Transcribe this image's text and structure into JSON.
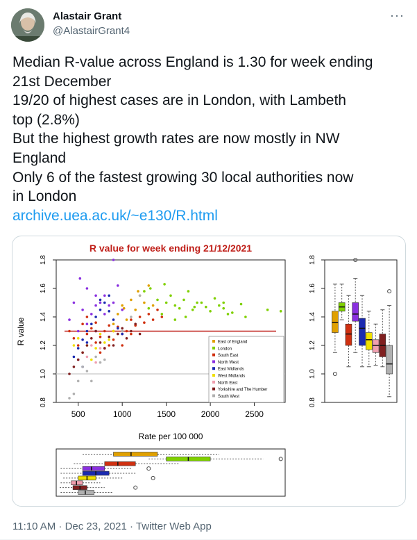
{
  "tweet": {
    "author_name": "Alastair Grant",
    "author_handle": "@AlastairGrant4",
    "more_label": "···",
    "lines": [
      "Median R-value across England is 1.30 for week ending",
      "21st December",
      "19/20 of highest cases are in London, with Lambeth",
      "top (2.8%)",
      "But the highest growth rates are now mostly in NW",
      "England",
      "Only 6 of the fastest growing 30 local authorities now",
      "in London"
    ],
    "link_text": "archive.uea.ac.uk/~e130/R.html",
    "meta": "11:10 AM · Dec 23, 2021 · Twitter Web App"
  },
  "chart_data": [
    {
      "type": "scatter",
      "title": "R value for week ending 21/12/2021",
      "xlabel": "Rate per 100 000",
      "ylabel": "R value",
      "xlim": [
        250,
        2850
      ],
      "ylim": [
        0.8,
        1.8
      ],
      "x_ticks": [
        "500",
        "1000",
        "1500",
        "2000",
        "2500"
      ],
      "y_ticks": [
        "0.8",
        "1.0",
        "1.2",
        "1.4",
        "1.6",
        "1.8"
      ],
      "median_line": 1.3,
      "reference_line": 1.0,
      "legend_position": "bottom-right",
      "series": [
        {
          "name": "East of England",
          "color": "#e0a000",
          "points": [
            [
              1100,
              1.52
            ],
            [
              1000,
              1.48
            ],
            [
              1150,
              1.45
            ],
            [
              950,
              1.42
            ],
            [
              1200,
              1.55
            ],
            [
              1300,
              1.62
            ],
            [
              1050,
              1.38
            ],
            [
              900,
              1.35
            ],
            [
              1250,
              1.5
            ],
            [
              1350,
              1.48
            ],
            [
              1180,
              1.58
            ],
            [
              1020,
              1.46
            ]
          ]
        },
        {
          "name": "London",
          "color": "#7fd000",
          "points": [
            [
              1500,
              1.5
            ],
            [
              1600,
              1.48
            ],
            [
              1700,
              1.52
            ],
            [
              1800,
              1.45
            ],
            [
              1900,
              1.5
            ],
            [
              2000,
              1.44
            ],
            [
              2100,
              1.48
            ],
            [
              2200,
              1.42
            ],
            [
              2400,
              1.4
            ],
            [
              2650,
              1.45
            ],
            [
              2800,
              1.44
            ],
            [
              1550,
              1.55
            ],
            [
              1650,
              1.46
            ],
            [
              1750,
              1.58
            ],
            [
              1850,
              1.5
            ],
            [
              1950,
              1.47
            ],
            [
              2050,
              1.53
            ],
            [
              2150,
              1.46
            ],
            [
              2250,
              1.43
            ],
            [
              2350,
              1.49
            ],
            [
              1450,
              1.42
            ],
            [
              1600,
              1.38
            ],
            [
              1720,
              1.4
            ],
            [
              1820,
              1.47
            ],
            [
              1400,
              1.52
            ],
            [
              1300,
              1.46
            ],
            [
              1250,
              1.58
            ],
            [
              1320,
              1.6
            ],
            [
              1480,
              1.63
            ],
            [
              2150,
              1.5
            ]
          ]
        },
        {
          "name": "South East",
          "color": "#d03010",
          "points": [
            [
              400,
              1.3
            ],
            [
              450,
              1.25
            ],
            [
              500,
              1.2
            ],
            [
              550,
              1.35
            ],
            [
              600,
              1.28
            ],
            [
              650,
              1.32
            ],
            [
              700,
              1.22
            ],
            [
              750,
              1.26
            ],
            [
              800,
              1.3
            ],
            [
              850,
              1.2
            ],
            [
              900,
              1.24
            ],
            [
              950,
              1.33
            ],
            [
              1000,
              1.28
            ],
            [
              1050,
              1.3
            ],
            [
              1100,
              1.38
            ],
            [
              1150,
              1.34
            ],
            [
              1200,
              1.4
            ],
            [
              1250,
              1.36
            ],
            [
              1300,
              1.42
            ],
            [
              1350,
              1.38
            ],
            [
              1400,
              1.45
            ],
            [
              1450,
              1.4
            ],
            [
              700,
              1.36
            ],
            [
              800,
              1.18
            ],
            [
              900,
              1.3
            ],
            [
              1000,
              1.2
            ],
            [
              1100,
              1.28
            ],
            [
              600,
              1.4
            ],
            [
              750,
              1.15
            ],
            [
              850,
              1.34
            ]
          ]
        },
        {
          "name": "North West",
          "color": "#8a30e0",
          "points": [
            [
              520,
              1.67
            ],
            [
              600,
              1.6
            ],
            [
              700,
              1.55
            ],
            [
              800,
              1.55
            ],
            [
              900,
              1.8
            ],
            [
              850,
              1.48
            ],
            [
              750,
              1.5
            ],
            [
              650,
              1.42
            ],
            [
              550,
              1.45
            ],
            [
              450,
              1.5
            ],
            [
              400,
              1.38
            ],
            [
              1000,
              1.45
            ],
            [
              950,
              1.62
            ],
            [
              700,
              1.48
            ],
            [
              800,
              1.42
            ],
            [
              900,
              1.5
            ],
            [
              600,
              1.35
            ],
            [
              500,
              1.3
            ]
          ]
        },
        {
          "name": "East Midlands",
          "color": "#1a2ab0",
          "points": [
            [
              450,
              1.12
            ],
            [
              500,
              1.18
            ],
            [
              550,
              1.24
            ],
            [
              600,
              1.3
            ],
            [
              650,
              1.35
            ],
            [
              700,
              1.4
            ],
            [
              750,
              1.45
            ],
            [
              800,
              1.5
            ],
            [
              850,
              1.44
            ],
            [
              900,
              1.38
            ],
            [
              950,
              1.32
            ],
            [
              1000,
              1.28
            ],
            [
              750,
              1.52
            ],
            [
              850,
              1.55
            ],
            [
              700,
              1.3
            ],
            [
              600,
              1.22
            ],
            [
              500,
              1.1
            ],
            [
              550,
              1.05
            ]
          ]
        },
        {
          "name": "West Midlands",
          "color": "#f0e000",
          "points": [
            [
              500,
              1.25
            ],
            [
              600,
              1.2
            ],
            [
              700,
              1.18
            ],
            [
              800,
              1.22
            ],
            [
              900,
              1.3
            ],
            [
              650,
              1.1
            ],
            [
              550,
              1.15
            ],
            [
              750,
              1.28
            ],
            [
              850,
              1.24
            ],
            [
              450,
              1.2
            ]
          ]
        },
        {
          "name": "North East",
          "color": "#f0a0b0",
          "points": [
            [
              500,
              1.1
            ],
            [
              550,
              1.15
            ],
            [
              600,
              1.12
            ],
            [
              650,
              1.2
            ],
            [
              700,
              1.08
            ],
            [
              750,
              1.18
            ]
          ]
        },
        {
          "name": "Yorkshire and The Humber",
          "color": "#802020",
          "points": [
            [
              400,
              1.0
            ],
            [
              450,
              1.05
            ],
            [
              500,
              1.1
            ],
            [
              550,
              1.15
            ],
            [
              600,
              1.2
            ],
            [
              650,
              1.25
            ],
            [
              700,
              1.3
            ],
            [
              750,
              1.22
            ],
            [
              800,
              1.18
            ],
            [
              850,
              1.26
            ],
            [
              900,
              1.2
            ],
            [
              950,
              1.28
            ],
            [
              1000,
              1.32
            ],
            [
              1050,
              1.25
            ],
            [
              1100,
              1.3
            ],
            [
              1150,
              1.35
            ],
            [
              1200,
              1.28
            ]
          ]
        },
        {
          "name": "South West",
          "color": "#b0b0b0",
          "points": [
            [
              400,
              0.83
            ],
            [
              450,
              0.86
            ],
            [
              500,
              0.95
            ],
            [
              550,
              1.05
            ],
            [
              600,
              1.02
            ],
            [
              650,
              0.95
            ],
            [
              700,
              1.12
            ],
            [
              750,
              1.08
            ],
            [
              800,
              1.1
            ],
            [
              1000,
              1.3
            ],
            [
              1100,
              1.4
            ],
            [
              1200,
              1.55
            ]
          ]
        }
      ]
    },
    {
      "type": "boxplot",
      "orientation": "vertical",
      "ylim": [
        0.8,
        1.8
      ],
      "y_ticks": [
        "0.8",
        "1.0",
        "1.2",
        "1.4",
        "1.6",
        "1.8"
      ],
      "boxes": [
        {
          "color": "#e0a000",
          "min": 1.15,
          "q1": 1.29,
          "median": 1.36,
          "q3": 1.44,
          "max": 1.63,
          "outliers": [
            1.0
          ]
        },
        {
          "color": "#7fd000",
          "min": 1.38,
          "q1": 1.44,
          "median": 1.47,
          "q3": 1.5,
          "max": 1.63,
          "outliers": []
        },
        {
          "color": "#d03010",
          "min": 1.05,
          "q1": 1.2,
          "median": 1.28,
          "q3": 1.35,
          "max": 1.55,
          "outliers": []
        },
        {
          "color": "#8a30e0",
          "min": 1.15,
          "q1": 1.37,
          "median": 1.42,
          "q3": 1.5,
          "max": 1.67,
          "outliers": [
            1.8
          ]
        },
        {
          "color": "#1a2ab0",
          "min": 1.05,
          "q1": 1.2,
          "median": 1.32,
          "q3": 1.39,
          "max": 1.55,
          "outliers": []
        },
        {
          "color": "#f0e000",
          "min": 1.05,
          "q1": 1.17,
          "median": 1.24,
          "q3": 1.29,
          "max": 1.44,
          "outliers": []
        },
        {
          "color": "#f0a0b0",
          "min": 1.06,
          "q1": 1.15,
          "median": 1.2,
          "q3": 1.24,
          "max": 1.35,
          "outliers": []
        },
        {
          "color": "#802020",
          "min": 1.05,
          "q1": 1.12,
          "median": 1.2,
          "q3": 1.28,
          "max": 1.45,
          "outliers": []
        },
        {
          "color": "#b0b0b0",
          "min": 0.84,
          "q1": 1.0,
          "median": 1.07,
          "q3": 1.2,
          "max": 1.48,
          "outliers": [
            1.58
          ]
        }
      ]
    },
    {
      "type": "boxplot",
      "orientation": "horizontal",
      "xlim": [
        250,
        2850
      ],
      "boxes": [
        {
          "color": "#e0a000",
          "min": 550,
          "q1": 900,
          "median": 1100,
          "q3": 1400,
          "max": 2100,
          "outliers": []
        },
        {
          "color": "#7fd000",
          "min": 1300,
          "q1": 1500,
          "median": 1750,
          "q3": 2000,
          "max": 2600,
          "outliers": [
            2800
          ]
        },
        {
          "color": "#d03010",
          "min": 450,
          "q1": 800,
          "median": 950,
          "q3": 1150,
          "max": 1650,
          "outliers": []
        },
        {
          "color": "#8a30e0",
          "min": 300,
          "q1": 550,
          "median": 650,
          "q3": 800,
          "max": 1100,
          "outliers": [
            1300
          ]
        },
        {
          "color": "#1a2ab0",
          "min": 300,
          "q1": 550,
          "median": 700,
          "q3": 850,
          "max": 1150,
          "outliers": []
        },
        {
          "color": "#f0e000",
          "min": 330,
          "q1": 500,
          "median": 600,
          "q3": 700,
          "max": 1000,
          "outliers": [
            1350
          ]
        },
        {
          "color": "#f0a0b0",
          "min": 300,
          "q1": 420,
          "median": 480,
          "q3": 550,
          "max": 750,
          "outliers": []
        },
        {
          "color": "#802020",
          "min": 290,
          "q1": 440,
          "median": 520,
          "q3": 600,
          "max": 800,
          "outliers": [
            1150
          ]
        },
        {
          "color": "#b0b0b0",
          "min": 300,
          "q1": 500,
          "median": 580,
          "q3": 680,
          "max": 900,
          "outliers": []
        }
      ]
    }
  ]
}
